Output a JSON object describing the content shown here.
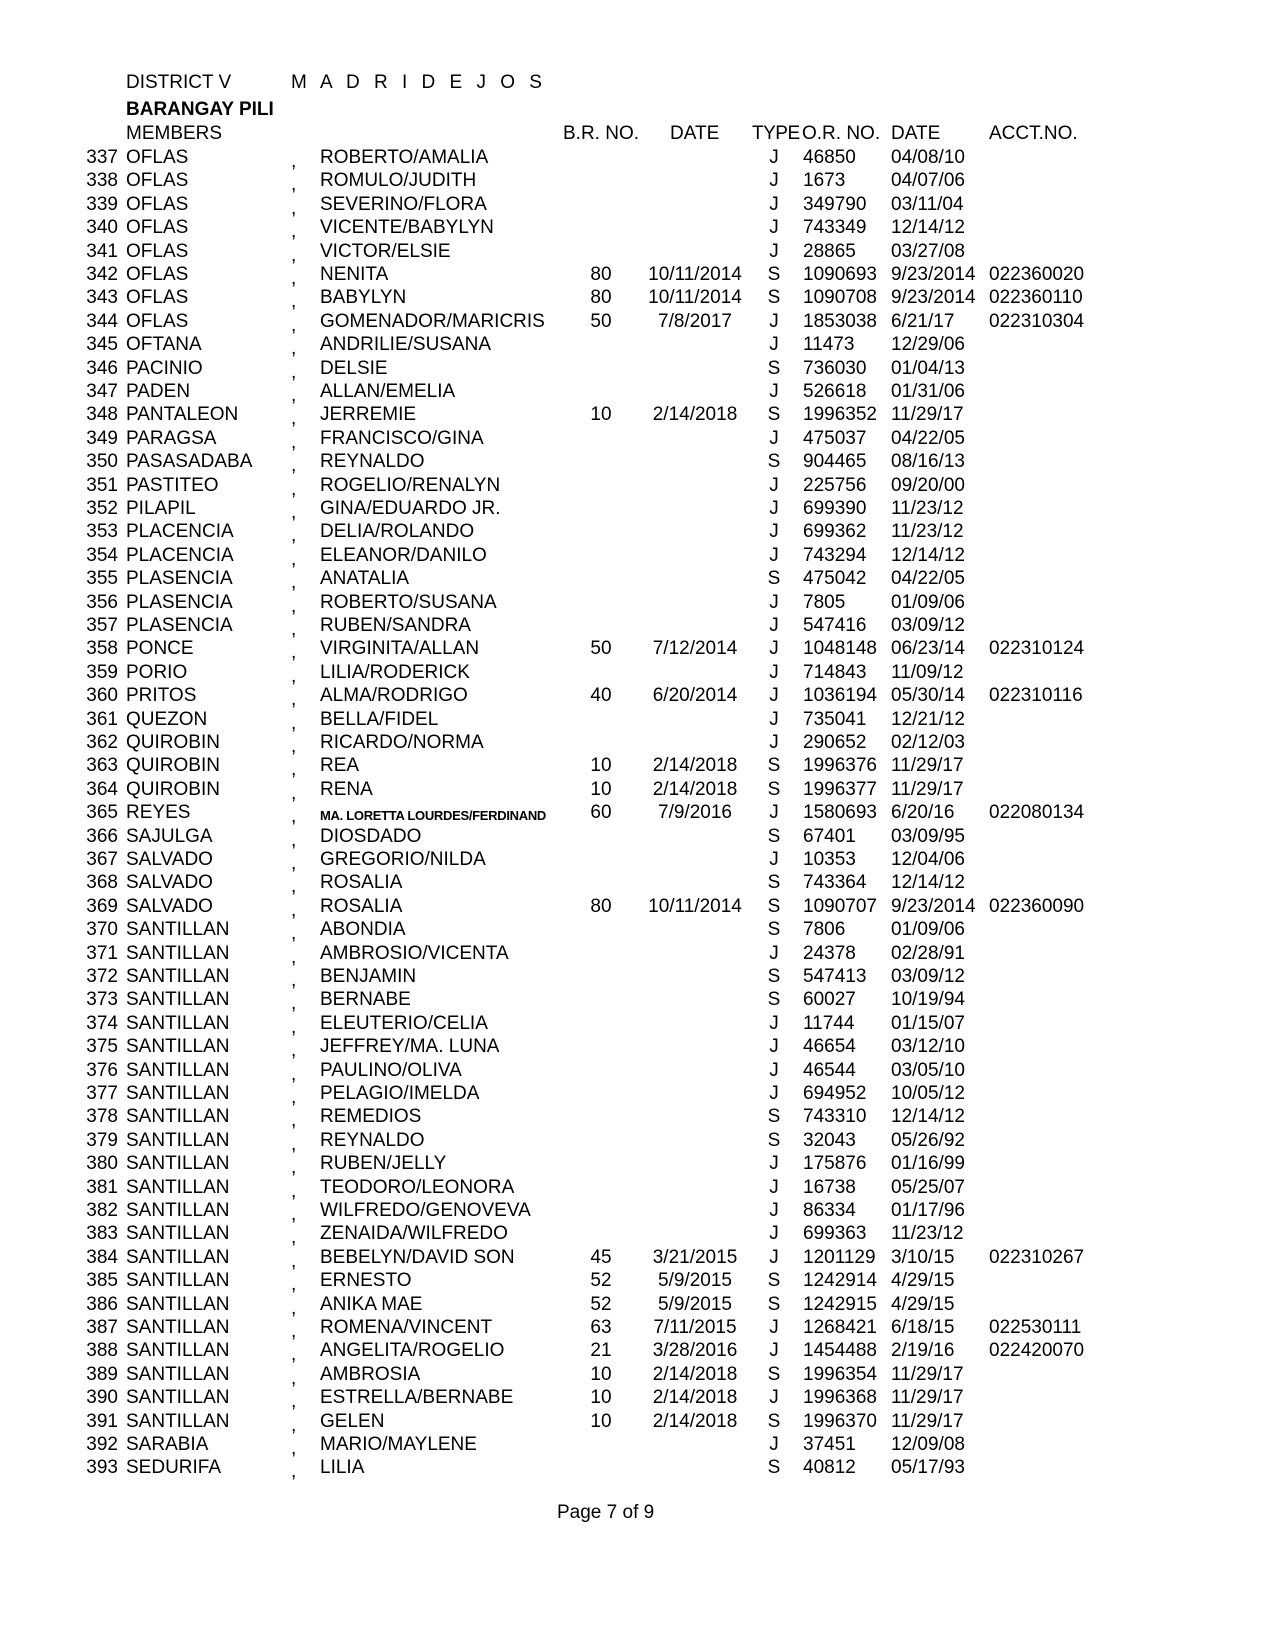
{
  "header": {
    "district": "DISTRICT V",
    "municipality": "M A D R I D E J O S",
    "barangay": "BARANGAY  PILI"
  },
  "columns": {
    "members": "MEMBERS",
    "br_no": "B.R. NO.",
    "br_date": "DATE",
    "type": "TYPE",
    "or_no": "O.R. NO.",
    "or_date": "DATE",
    "acct_no": "ACCT.NO."
  },
  "rows": [
    [
      "337",
      "OFLAS",
      "ROBERTO/AMALIA",
      "",
      "",
      "J",
      "46850",
      "04/08/10",
      ""
    ],
    [
      "338",
      "OFLAS",
      "ROMULO/JUDITH",
      "",
      "",
      "J",
      "1673",
      "04/07/06",
      ""
    ],
    [
      "339",
      "OFLAS",
      "SEVERINO/FLORA",
      "",
      "",
      "J",
      "349790",
      "03/11/04",
      ""
    ],
    [
      "340",
      "OFLAS",
      "VICENTE/BABYLYN",
      "",
      "",
      "J",
      "743349",
      "12/14/12",
      ""
    ],
    [
      "341",
      "OFLAS",
      "VICTOR/ELSIE",
      "",
      "",
      "J",
      "28865",
      "03/27/08",
      ""
    ],
    [
      "342",
      "OFLAS",
      "NENITA",
      "80",
      "10/11/2014",
      "S",
      "1090693",
      "9/23/2014",
      "022360020"
    ],
    [
      "343",
      "OFLAS",
      "BABYLYN",
      "80",
      "10/11/2014",
      "S",
      "1090708",
      "9/23/2014",
      "022360110"
    ],
    [
      "344",
      "OFLAS",
      "GOMENADOR/MARICRIS",
      "50",
      "7/8/2017",
      "J",
      "1853038",
      "6/21/17",
      "022310304"
    ],
    [
      "345",
      "OFTANA",
      "ANDRILIE/SUSANA",
      "",
      "",
      "J",
      "11473",
      "12/29/06",
      ""
    ],
    [
      "346",
      "PACINIO",
      "DELSIE",
      "",
      "",
      "S",
      "736030",
      "01/04/13",
      ""
    ],
    [
      "347",
      "PADEN",
      "ALLAN/EMELIA",
      "",
      "",
      "J",
      "526618",
      "01/31/06",
      ""
    ],
    [
      "348",
      "PANTALEON",
      "JERREMIE",
      "10",
      "2/14/2018",
      "S",
      "1996352",
      "11/29/17",
      ""
    ],
    [
      "349",
      "PARAGSA",
      "FRANCISCO/GINA",
      "",
      "",
      "J",
      "475037",
      "04/22/05",
      ""
    ],
    [
      "350",
      "PASASADABA",
      "REYNALDO",
      "",
      "",
      "S",
      "904465",
      "08/16/13",
      ""
    ],
    [
      "351",
      "PASTITEO",
      "ROGELIO/RENALYN",
      "",
      "",
      "J",
      "225756",
      "09/20/00",
      ""
    ],
    [
      "352",
      "PILAPIL",
      "GINA/EDUARDO JR.",
      "",
      "",
      "J",
      "699390",
      "11/23/12",
      ""
    ],
    [
      "353",
      "PLACENCIA",
      "DELIA/ROLANDO",
      "",
      "",
      "J",
      "699362",
      "11/23/12",
      ""
    ],
    [
      "354",
      "PLACENCIA",
      "ELEANOR/DANILO",
      "",
      "",
      "J",
      "743294",
      "12/14/12",
      ""
    ],
    [
      "355",
      "PLASENCIA",
      "ANATALIA",
      "",
      "",
      "S",
      "475042",
      "04/22/05",
      ""
    ],
    [
      "356",
      "PLASENCIA",
      "ROBERTO/SUSANA",
      "",
      "",
      "J",
      "7805",
      "01/09/06",
      ""
    ],
    [
      "357",
      "PLASENCIA",
      "RUBEN/SANDRA",
      "",
      "",
      "J",
      "547416",
      "03/09/12",
      ""
    ],
    [
      "358",
      "PONCE",
      "VIRGINITA/ALLAN",
      "50",
      "7/12/2014",
      "J",
      "1048148",
      "06/23/14",
      "022310124"
    ],
    [
      "359",
      "PORIO",
      "LILIA/RODERICK",
      "",
      "",
      "J",
      "714843",
      "11/09/12",
      ""
    ],
    [
      "360",
      "PRITOS",
      "ALMA/RODRIGO",
      "40",
      "6/20/2014",
      "J",
      "1036194",
      "05/30/14",
      "022310116"
    ],
    [
      "361",
      "QUEZON",
      "BELLA/FIDEL",
      "",
      "",
      "J",
      "735041",
      "12/21/12",
      ""
    ],
    [
      "362",
      "QUIROBIN",
      "RICARDO/NORMA",
      "",
      "",
      "J",
      "290652",
      "02/12/03",
      ""
    ],
    [
      "363",
      "QUIROBIN",
      "REA",
      "10",
      "2/14/2018",
      "S",
      "1996376",
      "11/29/17",
      ""
    ],
    [
      "364",
      "QUIROBIN",
      "RENA",
      "10",
      "2/14/2018",
      "S",
      "1996377",
      "11/29/17",
      ""
    ],
    [
      "365",
      "REYES",
      "MA. LORETTA LOURDES/FERDINAND",
      "60",
      "7/9/2016",
      "J",
      "1580693",
      "6/20/16",
      "022080134"
    ],
    [
      "366",
      "SAJULGA",
      "DIOSDADO",
      "",
      "",
      "S",
      "67401",
      "03/09/95",
      ""
    ],
    [
      "367",
      "SALVADO",
      "GREGORIO/NILDA",
      "",
      "",
      "J",
      "10353",
      "12/04/06",
      ""
    ],
    [
      "368",
      "SALVADO",
      "ROSALIA",
      "",
      "",
      "S",
      "743364",
      "12/14/12",
      ""
    ],
    [
      "369",
      "SALVADO",
      "ROSALIA",
      "80",
      "10/11/2014",
      "S",
      "1090707",
      "9/23/2014",
      "022360090"
    ],
    [
      "370",
      "SANTILLAN",
      "ABONDIA",
      "",
      "",
      "S",
      "7806",
      "01/09/06",
      ""
    ],
    [
      "371",
      "SANTILLAN",
      "AMBROSIO/VICENTA",
      "",
      "",
      "J",
      "24378",
      "02/28/91",
      ""
    ],
    [
      "372",
      "SANTILLAN",
      "BENJAMIN",
      "",
      "",
      "S",
      "547413",
      "03/09/12",
      ""
    ],
    [
      "373",
      "SANTILLAN",
      "BERNABE",
      "",
      "",
      "S",
      "60027",
      "10/19/94",
      ""
    ],
    [
      "374",
      "SANTILLAN",
      "ELEUTERIO/CELIA",
      "",
      "",
      "J",
      "11744",
      "01/15/07",
      ""
    ],
    [
      "375",
      "SANTILLAN",
      "JEFFREY/MA. LUNA",
      "",
      "",
      "J",
      "46654",
      "03/12/10",
      ""
    ],
    [
      "376",
      "SANTILLAN",
      "PAULINO/OLIVA",
      "",
      "",
      "J",
      "46544",
      "03/05/10",
      ""
    ],
    [
      "377",
      "SANTILLAN",
      "PELAGIO/IMELDA",
      "",
      "",
      "J",
      "694952",
      "10/05/12",
      ""
    ],
    [
      "378",
      "SANTILLAN",
      "REMEDIOS",
      "",
      "",
      "S",
      "743310",
      "12/14/12",
      ""
    ],
    [
      "379",
      "SANTILLAN",
      "REYNALDO",
      "",
      "",
      "S",
      "32043",
      "05/26/92",
      ""
    ],
    [
      "380",
      "SANTILLAN",
      "RUBEN/JELLY",
      "",
      "",
      "J",
      "175876",
      "01/16/99",
      ""
    ],
    [
      "381",
      "SANTILLAN",
      "TEODORO/LEONORA",
      "",
      "",
      "J",
      "16738",
      "05/25/07",
      ""
    ],
    [
      "382",
      "SANTILLAN",
      "WILFREDO/GENOVEVA",
      "",
      "",
      "J",
      "86334",
      "01/17/96",
      ""
    ],
    [
      "383",
      "SANTILLAN",
      "ZENAIDA/WILFREDO",
      "",
      "",
      "J",
      "699363",
      "11/23/12",
      ""
    ],
    [
      "384",
      "SANTILLAN",
      "BEBELYN/DAVID SON",
      "45",
      "3/21/2015",
      "J",
      "1201129",
      "3/10/15",
      "022310267"
    ],
    [
      "385",
      "SANTILLAN",
      "ERNESTO",
      "52",
      "5/9/2015",
      "S",
      "1242914",
      "4/29/15",
      ""
    ],
    [
      "386",
      "SANTILLAN",
      "ANIKA MAE",
      "52",
      "5/9/2015",
      "S",
      "1242915",
      "4/29/15",
      ""
    ],
    [
      "387",
      "SANTILLAN",
      "ROMENA/VINCENT",
      "63",
      "7/11/2015",
      "J",
      "1268421",
      "6/18/15",
      "022530111"
    ],
    [
      "388",
      "SANTILLAN",
      "ANGELITA/ROGELIO",
      "21",
      "3/28/2016",
      "J",
      "1454488",
      "2/19/16",
      "022420070"
    ],
    [
      "389",
      "SANTILLAN",
      "AMBROSIA",
      "10",
      "2/14/2018",
      "S",
      "1996354",
      "11/29/17",
      ""
    ],
    [
      "390",
      "SANTILLAN",
      "ESTRELLA/BERNABE",
      "10",
      "2/14/2018",
      "J",
      "1996368",
      "11/29/17",
      ""
    ],
    [
      "391",
      "SANTILLAN",
      "GELEN",
      "10",
      "2/14/2018",
      "S",
      "1996370",
      "11/29/17",
      ""
    ],
    [
      "392",
      "SARABIA",
      "MARIO/MAYLENE",
      "",
      "",
      "J",
      "37451",
      "12/09/08",
      ""
    ],
    [
      "393",
      "SEDURIFA",
      "LILIA",
      "",
      "",
      "S",
      "40812",
      "05/17/93",
      ""
    ]
  ],
  "separator": ",",
  "footer": {
    "page": "Page 7 of 9"
  }
}
